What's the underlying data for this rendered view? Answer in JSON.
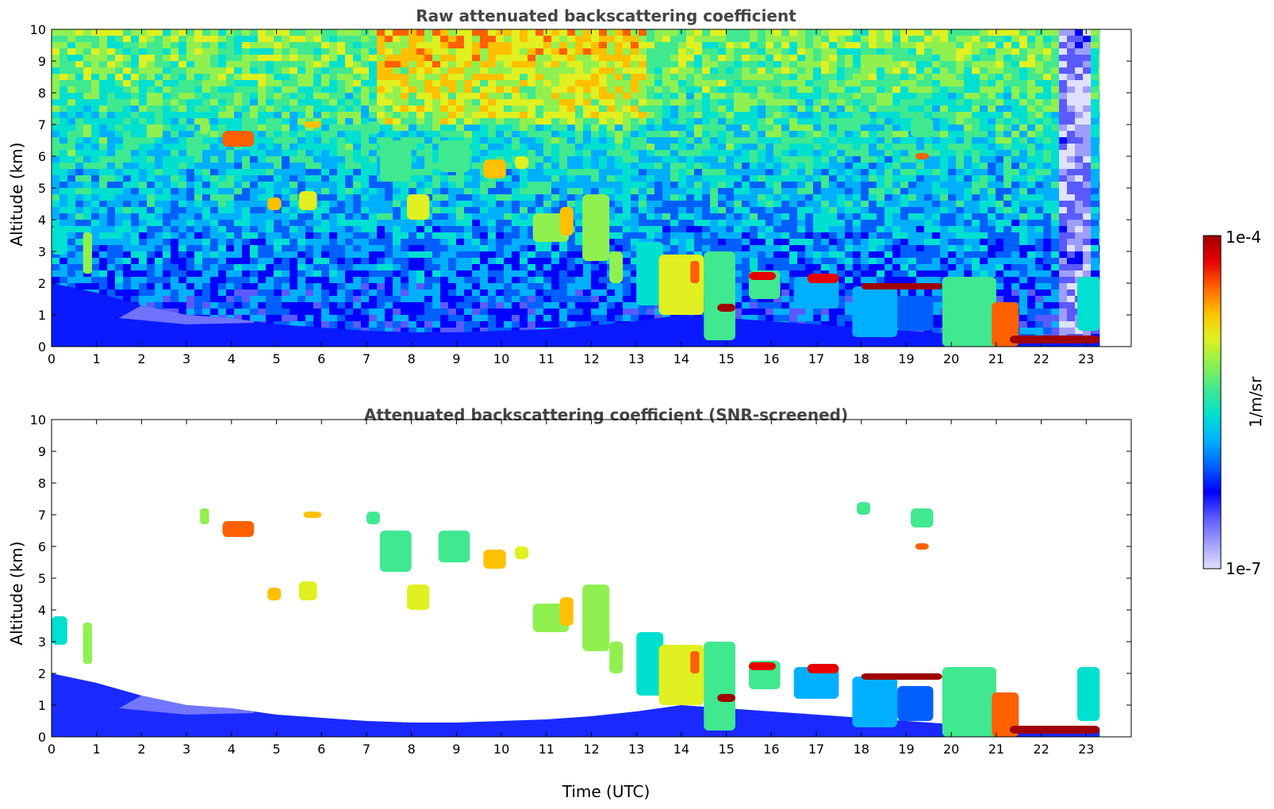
{
  "chart_data": [
    {
      "type": "heatmap",
      "title": "Raw attenuated backscattering coefficient",
      "ylabel": "Altitude (km)",
      "xlabel": "",
      "xlim": [
        0,
        24
      ],
      "ylim": [
        0,
        10
      ],
      "xticks": [
        "0",
        "1",
        "2",
        "3",
        "4",
        "5",
        "6",
        "7",
        "8",
        "9",
        "10",
        "11",
        "12",
        "13",
        "14",
        "15",
        "16",
        "17",
        "18",
        "19",
        "20",
        "21",
        "22",
        "23"
      ],
      "yticks": [
        "0",
        "1",
        "2",
        "3",
        "4",
        "5",
        "6",
        "7",
        "8",
        "9",
        "10"
      ],
      "data_end_time": 23.3,
      "noise_visible": true,
      "boundary_layer_top": [
        [
          0,
          2.0
        ],
        [
          1,
          1.7
        ],
        [
          2,
          1.3
        ],
        [
          3,
          1.0
        ],
        [
          4,
          0.9
        ],
        [
          5,
          0.7
        ],
        [
          6,
          0.6
        ],
        [
          7,
          0.5
        ],
        [
          8,
          0.45
        ],
        [
          9,
          0.45
        ],
        [
          10,
          0.5
        ],
        [
          11,
          0.55
        ],
        [
          12,
          0.65
        ],
        [
          13,
          0.8
        ],
        [
          14,
          1.0
        ],
        [
          15,
          0.9
        ],
        [
          16,
          0.8
        ],
        [
          17,
          0.7
        ],
        [
          18,
          0.6
        ],
        [
          19,
          0.5
        ],
        [
          20,
          0.4
        ],
        [
          21,
          0.3
        ],
        [
          22,
          0.25
        ],
        [
          23,
          0.25
        ]
      ],
      "features": [
        {
          "t0": 0.0,
          "t1": 0.35,
          "z0": 2.9,
          "z1": 3.8,
          "level": 0.45
        },
        {
          "t0": 0.7,
          "t1": 0.9,
          "z0": 2.3,
          "z1": 3.6,
          "level": 0.6
        },
        {
          "t0": 3.3,
          "t1": 3.5,
          "z0": 6.7,
          "z1": 7.2,
          "level": 0.6
        },
        {
          "t0": 3.8,
          "t1": 4.5,
          "z0": 6.3,
          "z1": 6.8,
          "level": 0.82
        },
        {
          "t0": 4.8,
          "t1": 5.1,
          "z0": 4.3,
          "z1": 4.7,
          "level": 0.75
        },
        {
          "t0": 5.5,
          "t1": 5.9,
          "z0": 4.3,
          "z1": 4.9,
          "level": 0.7
        },
        {
          "t0": 5.6,
          "t1": 6.0,
          "z0": 6.9,
          "z1": 7.1,
          "level": 0.72
        },
        {
          "t0": 7.0,
          "t1": 7.3,
          "z0": 6.7,
          "z1": 7.1,
          "level": 0.55
        },
        {
          "t0": 7.3,
          "t1": 8.0,
          "z0": 5.2,
          "z1": 6.5,
          "level": 0.55
        },
        {
          "t0": 7.9,
          "t1": 8.4,
          "z0": 4.0,
          "z1": 4.8,
          "level": 0.65
        },
        {
          "t0": 8.6,
          "t1": 9.3,
          "z0": 5.5,
          "z1": 6.5,
          "level": 0.5
        },
        {
          "t0": 9.6,
          "t1": 10.1,
          "z0": 5.3,
          "z1": 5.9,
          "level": 0.72
        },
        {
          "t0": 10.3,
          "t1": 10.6,
          "z0": 5.6,
          "z1": 6.0,
          "level": 0.65
        },
        {
          "t0": 10.7,
          "t1": 11.5,
          "z0": 3.3,
          "z1": 4.2,
          "level": 0.62
        },
        {
          "t0": 11.3,
          "t1": 11.6,
          "z0": 3.5,
          "z1": 4.4,
          "level": 0.75
        },
        {
          "t0": 11.8,
          "t1": 12.4,
          "z0": 2.7,
          "z1": 4.8,
          "level": 0.62
        },
        {
          "t0": 12.4,
          "t1": 12.7,
          "z0": 2.0,
          "z1": 3.0,
          "level": 0.6
        },
        {
          "t0": 13.0,
          "t1": 13.6,
          "z0": 1.3,
          "z1": 3.3,
          "level": 0.45
        },
        {
          "t0": 13.5,
          "t1": 14.5,
          "z0": 1.0,
          "z1": 2.9,
          "level": 0.65
        },
        {
          "t0": 14.2,
          "t1": 14.4,
          "z0": 2.0,
          "z1": 2.7,
          "level": 0.85
        },
        {
          "t0": 14.5,
          "t1": 15.2,
          "z0": 0.2,
          "z1": 3.0,
          "level": 0.5
        },
        {
          "t0": 14.8,
          "t1": 15.2,
          "z0": 1.1,
          "z1": 1.35,
          "level": 0.95
        },
        {
          "t0": 15.5,
          "t1": 16.2,
          "z0": 1.5,
          "z1": 2.4,
          "level": 0.5
        },
        {
          "t0": 15.5,
          "t1": 16.1,
          "z0": 2.1,
          "z1": 2.35,
          "level": 0.9
        },
        {
          "t0": 16.5,
          "t1": 17.5,
          "z0": 1.2,
          "z1": 2.2,
          "level": 0.4
        },
        {
          "t0": 16.8,
          "t1": 17.5,
          "z0": 2.0,
          "z1": 2.3,
          "level": 0.92
        },
        {
          "t0": 17.8,
          "t1": 18.8,
          "z0": 0.3,
          "z1": 1.9,
          "level": 0.4
        },
        {
          "t0": 18.0,
          "t1": 19.8,
          "z0": 1.8,
          "z1": 2.0,
          "level": 0.95
        },
        {
          "t0": 18.8,
          "t1": 19.6,
          "z0": 0.5,
          "z1": 1.6,
          "level": 0.35
        },
        {
          "t0": 19.1,
          "t1": 19.6,
          "z0": 6.6,
          "z1": 7.2,
          "level": 0.55
        },
        {
          "t0": 19.2,
          "t1": 19.5,
          "z0": 5.9,
          "z1": 6.1,
          "level": 0.8
        },
        {
          "t0": 17.9,
          "t1": 18.2,
          "z0": 7.0,
          "z1": 7.4,
          "level": 0.5
        },
        {
          "t0": 19.8,
          "t1": 21.0,
          "z0": 0.0,
          "z1": 2.2,
          "level": 0.55
        },
        {
          "t0": 20.9,
          "t1": 21.5,
          "z0": 0.0,
          "z1": 1.4,
          "level": 0.8
        },
        {
          "t0": 21.3,
          "t1": 23.3,
          "z0": 0.1,
          "z1": 0.35,
          "level": 0.95
        },
        {
          "t0": 22.8,
          "t1": 23.3,
          "z0": 0.5,
          "z1": 2.2,
          "level": 0.45
        }
      ]
    },
    {
      "type": "heatmap",
      "title": "Attenuated backscattering coefficient (SNR-screened)",
      "ylabel": "Altitude (km)",
      "xlabel": "Time (UTC)",
      "xlim": [
        0,
        24
      ],
      "ylim": [
        0,
        10
      ],
      "xticks": [
        "0",
        "1",
        "2",
        "3",
        "4",
        "5",
        "6",
        "7",
        "8",
        "9",
        "10",
        "11",
        "12",
        "13",
        "14",
        "15",
        "16",
        "17",
        "18",
        "19",
        "20",
        "21",
        "22",
        "23"
      ],
      "yticks": [
        "0",
        "1",
        "2",
        "3",
        "4",
        "5",
        "6",
        "7",
        "8",
        "9",
        "10"
      ],
      "data_end_time": 23.3,
      "noise_visible": false
    }
  ],
  "colorbar": {
    "min_label": "1e-7",
    "max_label": "1e-4",
    "label": "1/m/sr",
    "colors": [
      "#e0e0ff",
      "#9e9eff",
      "#5a5aff",
      "#0000ff",
      "#0060ff",
      "#00b0ff",
      "#00e0d0",
      "#40e890",
      "#90f050",
      "#e0f020",
      "#ffc000",
      "#ff6000",
      "#e80000",
      "#a00000"
    ]
  }
}
